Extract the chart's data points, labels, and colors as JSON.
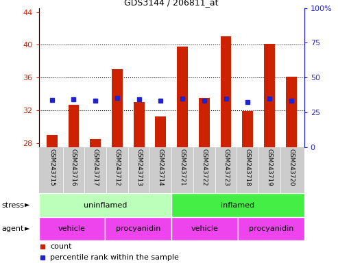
{
  "title": "GDS3144 / 206811_at",
  "samples": [
    "GSM243715",
    "GSM243716",
    "GSM243717",
    "GSM243712",
    "GSM243713",
    "GSM243714",
    "GSM243721",
    "GSM243722",
    "GSM243723",
    "GSM243718",
    "GSM243719",
    "GSM243720"
  ],
  "counts": [
    29.0,
    32.7,
    28.5,
    37.0,
    33.0,
    31.3,
    39.8,
    33.5,
    41.0,
    31.9,
    40.1,
    36.1
  ],
  "percentile_ranks": [
    34.0,
    34.5,
    33.5,
    35.5,
    34.5,
    33.5,
    35.0,
    33.5,
    35.0,
    32.5,
    35.0,
    33.5
  ],
  "bar_color": "#cc2200",
  "dot_color": "#2222cc",
  "ylim_left": [
    27.5,
    44.5
  ],
  "ylim_right": [
    0,
    100
  ],
  "yticks_left": [
    28,
    32,
    36,
    40,
    44
  ],
  "yticks_right": [
    0,
    25,
    50,
    75,
    100
  ],
  "ytick_labels_right": [
    "0",
    "25",
    "50",
    "75",
    "100%"
  ],
  "grid_yticks": [
    32,
    36,
    40
  ],
  "label_color_left": "#cc2200",
  "label_color_right": "#2222cc",
  "stress_uninflamed_color": "#bbffbb",
  "stress_inflamed_color": "#44ee44",
  "agent_color": "#ee44ee",
  "sample_bg_color": "#cccccc",
  "background_color": "#ffffff"
}
